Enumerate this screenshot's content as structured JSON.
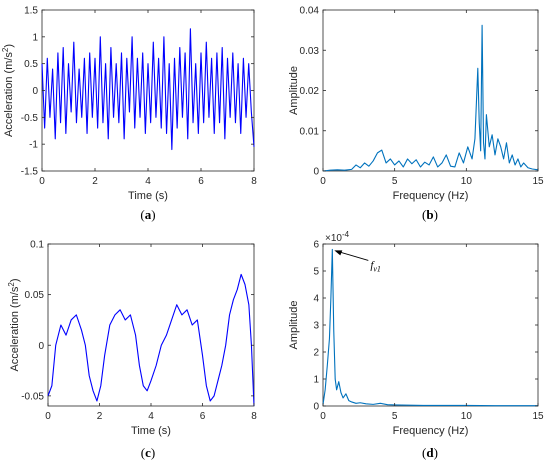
{
  "colors": {
    "time_line": "#0000FF",
    "spectrum_line": "#0072BD",
    "axis": "#262626"
  },
  "chart_data": [
    {
      "id": "a",
      "type": "line",
      "panel_label": "a",
      "xlabel": "Time (s)",
      "ylabel": "Acceleration (m/s",
      "ylabel_sup": "2",
      "ylabel_tail": ")",
      "xlim": [
        0,
        8
      ],
      "ylim": [
        -1.5,
        1.5
      ],
      "xticks": [
        0,
        2,
        4,
        6,
        8
      ],
      "xtick_labels": [
        "0",
        "2",
        "4",
        "6",
        "8"
      ],
      "yticks": [
        -1.5,
        -1,
        -0.5,
        0,
        0.5,
        1,
        1.5
      ],
      "ytick_labels": [
        "-1.5",
        "-1",
        "-0.5",
        "0",
        "0.5",
        "1",
        "1.5"
      ],
      "series": [
        {
          "x": [
            0,
            0.1,
            0.2,
            0.3,
            0.4,
            0.5,
            0.6,
            0.7,
            0.8,
            0.9,
            1.0,
            1.1,
            1.2,
            1.3,
            1.4,
            1.5,
            1.6,
            1.7,
            1.8,
            1.9,
            2.0,
            2.1,
            2.2,
            2.3,
            2.4,
            2.5,
            2.6,
            2.7,
            2.8,
            2.9,
            3.0,
            3.1,
            3.2,
            3.3,
            3.4,
            3.5,
            3.6,
            3.7,
            3.8,
            3.9,
            4.0,
            4.1,
            4.2,
            4.3,
            4.4,
            4.5,
            4.6,
            4.7,
            4.8,
            4.9,
            5.0,
            5.1,
            5.2,
            5.3,
            5.4,
            5.5,
            5.6,
            5.7,
            5.8,
            5.9,
            6.0,
            6.1,
            6.2,
            6.3,
            6.4,
            6.5,
            6.6,
            6.7,
            6.8,
            6.9,
            7.0,
            7.1,
            7.2,
            7.3,
            7.4,
            7.5,
            7.6,
            7.7,
            7.8,
            7.9,
            8.0
          ],
          "y": [
            0.5,
            -0.7,
            0.6,
            -0.5,
            0.4,
            -0.9,
            0.7,
            -0.6,
            0.8,
            -0.8,
            0.5,
            -0.4,
            0.9,
            -0.6,
            0.4,
            -0.5,
            0.6,
            -0.8,
            0.7,
            -0.5,
            0.6,
            -0.7,
            1.0,
            -0.6,
            0.5,
            -0.9,
            0.8,
            -0.5,
            0.5,
            -0.6,
            0.7,
            -0.9,
            0.6,
            -0.4,
            1.0,
            -0.7,
            0.6,
            -0.5,
            0.7,
            -0.8,
            0.5,
            -0.6,
            0.9,
            -0.5,
            0.6,
            -0.7,
            1.0,
            -0.8,
            0.5,
            -1.1,
            0.6,
            -0.7,
            0.8,
            -0.5,
            0.7,
            -0.9,
            1.15,
            -0.6,
            0.5,
            -0.8,
            0.7,
            -0.6,
            0.9,
            -0.5,
            0.6,
            -0.8,
            0.7,
            -0.6,
            0.8,
            -0.9,
            0.6,
            -0.5,
            0.7,
            -0.6,
            0.5,
            -0.8,
            0.6,
            -0.5,
            0.5,
            -0.4,
            -1.05
          ]
        }
      ]
    },
    {
      "id": "b",
      "type": "line",
      "panel_label": "b",
      "xlabel": "Frequency (Hz)",
      "ylabel": "Amplitude",
      "xlim": [
        0,
        15
      ],
      "ylim": [
        0,
        0.04
      ],
      "xticks": [
        0,
        5,
        10,
        15
      ],
      "xtick_labels": [
        "0",
        "5",
        "10",
        "15"
      ],
      "yticks": [
        0,
        0.01,
        0.02,
        0.03,
        0.04
      ],
      "ytick_labels": [
        "0",
        "0.01",
        "0.02",
        "0.03",
        "0.04"
      ],
      "series": [
        {
          "x": [
            0,
            0.5,
            1.0,
            1.5,
            2.0,
            2.3,
            2.6,
            2.9,
            3.2,
            3.5,
            3.8,
            4.1,
            4.4,
            4.7,
            5.0,
            5.3,
            5.6,
            5.9,
            6.2,
            6.5,
            6.8,
            7.1,
            7.4,
            7.7,
            8.0,
            8.3,
            8.6,
            8.9,
            9.2,
            9.5,
            9.8,
            10.1,
            10.4,
            10.6,
            10.8,
            10.9,
            11.0,
            11.1,
            11.2,
            11.3,
            11.4,
            11.6,
            11.8,
            12.0,
            12.2,
            12.4,
            12.6,
            12.8,
            13.0,
            13.2,
            13.4,
            13.6,
            13.8,
            14.0,
            14.3,
            14.6,
            15.0
          ],
          "y": [
            0,
            0.0002,
            0.0003,
            0.0002,
            0.0004,
            0.0015,
            0.0008,
            0.002,
            0.0012,
            0.0025,
            0.0045,
            0.0052,
            0.002,
            0.003,
            0.0015,
            0.0025,
            0.001,
            0.003,
            0.0018,
            0.0028,
            0.001,
            0.0022,
            0.0015,
            0.0035,
            0.001,
            0.002,
            0.004,
            0.0012,
            0.001,
            0.0045,
            0.002,
            0.006,
            0.003,
            0.008,
            0.0255,
            0.012,
            0.005,
            0.0362,
            0.007,
            0.003,
            0.014,
            0.006,
            0.009,
            0.004,
            0.008,
            0.006,
            0.003,
            0.007,
            0.002,
            0.004,
            0.0015,
            0.003,
            0.001,
            0.002,
            0.0008,
            0.0005,
            0.0003
          ]
        }
      ]
    },
    {
      "id": "c",
      "type": "line",
      "panel_label": "c",
      "xlabel": "Time (s)",
      "ylabel": "Acceleration (m/s",
      "ylabel_sup": "2",
      "ylabel_tail": ")",
      "xlim": [
        0,
        8
      ],
      "ylim": [
        -0.06,
        0.1
      ],
      "xticks": [
        0,
        2,
        4,
        6,
        8
      ],
      "xtick_labels": [
        "0",
        "2",
        "4",
        "6",
        "8"
      ],
      "yticks": [
        -0.05,
        0,
        0.05,
        0.1
      ],
      "ytick_labels": [
        "-0.05",
        "0",
        "0.05",
        "0.1"
      ],
      "series": [
        {
          "x": [
            0,
            0.15,
            0.3,
            0.5,
            0.7,
            0.9,
            1.1,
            1.3,
            1.45,
            1.6,
            1.75,
            1.9,
            2.05,
            2.2,
            2.4,
            2.6,
            2.8,
            3.0,
            3.2,
            3.4,
            3.55,
            3.7,
            3.85,
            4.0,
            4.2,
            4.4,
            4.6,
            4.8,
            5.0,
            5.2,
            5.4,
            5.6,
            5.8,
            6.0,
            6.15,
            6.3,
            6.45,
            6.6,
            6.75,
            6.9,
            7.05,
            7.2,
            7.35,
            7.5,
            7.65,
            7.8,
            7.9,
            8.0
          ],
          "y": [
            -0.05,
            -0.04,
            0.0,
            0.02,
            0.01,
            0.025,
            0.03,
            0.015,
            0.0,
            -0.03,
            -0.045,
            -0.055,
            -0.04,
            -0.01,
            0.02,
            0.03,
            0.035,
            0.025,
            0.03,
            0.01,
            -0.02,
            -0.04,
            -0.045,
            -0.035,
            -0.02,
            0.0,
            0.01,
            0.025,
            0.04,
            0.03,
            0.035,
            0.02,
            0.025,
            -0.01,
            -0.04,
            -0.055,
            -0.05,
            -0.035,
            -0.02,
            0.0,
            0.03,
            0.045,
            0.055,
            0.07,
            0.06,
            0.04,
            0.0,
            -0.06
          ]
        }
      ]
    },
    {
      "id": "d",
      "type": "line",
      "panel_label": "d",
      "xlabel": "Frequency (Hz)",
      "ylabel": "Amplitude",
      "xlim": [
        0,
        15
      ],
      "ylim": [
        0,
        6
      ],
      "xticks": [
        0,
        5,
        10,
        15
      ],
      "xtick_labels": [
        "0",
        "5",
        "10",
        "15"
      ],
      "yticks": [
        0,
        1,
        2,
        3,
        4,
        5,
        6
      ],
      "ytick_labels": [
        "0",
        "1",
        "2",
        "3",
        "4",
        "5",
        "6"
      ],
      "multiplier": "×10",
      "multiplier_exp": "-4",
      "annotation": {
        "text": "f",
        "sub": "v1",
        "at_x": 0.65,
        "at_y": 5.8
      },
      "series": [
        {
          "x": [
            0,
            0.15,
            0.3,
            0.45,
            0.55,
            0.65,
            0.75,
            0.85,
            0.95,
            1.1,
            1.25,
            1.4,
            1.6,
            1.8,
            2.0,
            2.3,
            2.6,
            3.0,
            3.5,
            4.0,
            4.5,
            5.0,
            6.0,
            7.0,
            8.0,
            10.0,
            12.0,
            15.0
          ],
          "y": [
            0.05,
            0.6,
            1.5,
            2.5,
            4.0,
            5.8,
            2.8,
            1.0,
            0.6,
            0.9,
            0.5,
            0.3,
            0.45,
            0.2,
            0.15,
            0.1,
            0.12,
            0.08,
            0.06,
            0.1,
            0.05,
            0.04,
            0.03,
            0.02,
            0.02,
            0.02,
            0.01,
            0.01
          ]
        }
      ]
    }
  ]
}
